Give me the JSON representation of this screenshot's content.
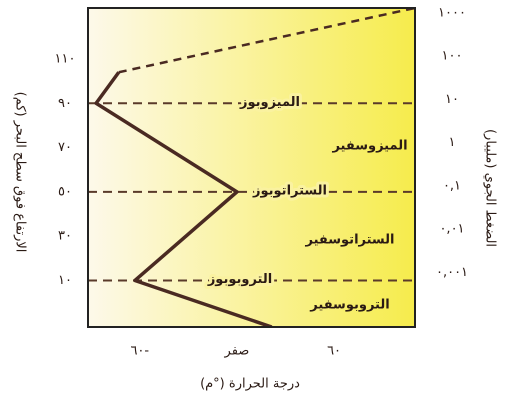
{
  "chart_data": {
    "type": "line",
    "x_label": "درجة الحرارة (°م)",
    "y_label": "الارتفاع فوق سطح البحر (كم)",
    "y2_label": "الضغط الجوي (مليبار)",
    "xlim": [
      -92,
      110
    ],
    "ylim": [
      -11,
      133
    ],
    "xticks": [
      {
        "value": -60,
        "label": "٦٠-"
      },
      {
        "value": 0,
        "label": "صفر"
      },
      {
        "value": 60,
        "label": "٦٠"
      }
    ],
    "yticks": [
      {
        "value": 10,
        "label": "١٠"
      },
      {
        "value": 30,
        "label": "٣٠"
      },
      {
        "value": 50,
        "label": "٥٠"
      },
      {
        "value": 70,
        "label": "٧٠"
      },
      {
        "value": 90,
        "label": "٩٠"
      },
      {
        "value": 110,
        "label": "١١٠"
      }
    ],
    "y2lim": [
      5.5e-05,
      1300
    ],
    "y2log": true,
    "y2ticks": [
      {
        "value": 0.001,
        "label": "٠,٠٠١"
      },
      {
        "value": 0.01,
        "label": "٠,٠١"
      },
      {
        "value": 0.1,
        "label": "٠,١"
      },
      {
        "value": 1,
        "label": "١"
      },
      {
        "value": 10,
        "label": "١٠"
      },
      {
        "value": 100,
        "label": "١٠٠"
      },
      {
        "value": 1000,
        "label": "١٠٠٠"
      }
    ],
    "series": [
      {
        "color": "#4a2a22",
        "dash": false,
        "x": [
          21.5,
          -63,
          0,
          -87,
          -73
        ],
        "values": [
          -11,
          10,
          50,
          90,
          104
        ]
      },
      {
        "color": "#4a2a22",
        "dash": true,
        "x": [
          -73,
          110
        ],
        "values": [
          104,
          133
        ]
      }
    ],
    "boundaries": [
      {
        "value": 10,
        "label": "التروبوبوز"
      },
      {
        "value": 50,
        "label": "الستراتوبوز"
      },
      {
        "value": 90,
        "label": "الميزوبوز"
      }
    ],
    "layers": [
      "التروبوسفير",
      "الستراتوسفير",
      "الميزوسفير"
    ]
  }
}
